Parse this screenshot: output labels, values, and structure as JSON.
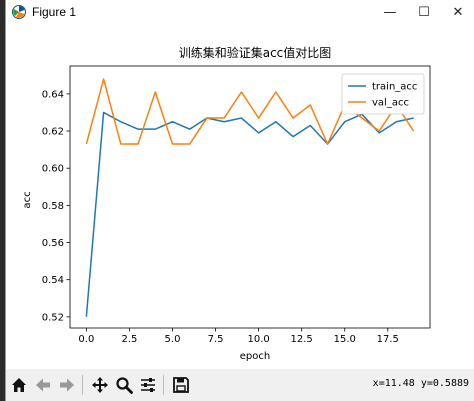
{
  "window": {
    "title": "Figure 1",
    "minimize": "—",
    "maximize": "☐",
    "close": "✕"
  },
  "toolbar": {
    "items": [
      "home-icon",
      "back-icon",
      "forward-icon",
      "pan-icon",
      "zoom-icon",
      "configure-subplots-icon",
      "save-icon"
    ],
    "coords": "x=11.48 y=0.5889"
  },
  "colors": {
    "train": "#1f77b4",
    "val": "#ff7f0e"
  },
  "chart_data": {
    "type": "line",
    "title": "训练集和验证集acc值对比图",
    "xlabel": "epoch",
    "ylabel": "acc",
    "xlim": [
      -0.95,
      19.95
    ],
    "ylim": [
      0.514,
      0.655
    ],
    "xticks": [
      0.0,
      2.5,
      5.0,
      7.5,
      10.0,
      12.5,
      15.0,
      17.5
    ],
    "xtick_labels": [
      "0.0",
      "2.5",
      "5.0",
      "7.5",
      "10.0",
      "12.5",
      "15.0",
      "17.5"
    ],
    "yticks": [
      0.52,
      0.54,
      0.56,
      0.58,
      0.6,
      0.62,
      0.64
    ],
    "ytick_labels": [
      "0.52",
      "0.54",
      "0.56",
      "0.58",
      "0.60",
      "0.62",
      "0.64"
    ],
    "legend_position": "top-right",
    "x": [
      0,
      1,
      2,
      3,
      4,
      5,
      6,
      7,
      8,
      9,
      10,
      11,
      12,
      13,
      14,
      15,
      16,
      17,
      18,
      19
    ],
    "series": [
      {
        "name": "train_acc",
        "values": [
          0.52,
          0.63,
          0.625,
          0.621,
          0.621,
          0.625,
          0.621,
          0.627,
          0.625,
          0.627,
          0.619,
          0.625,
          0.617,
          0.623,
          0.613,
          0.625,
          0.629,
          0.619,
          0.625,
          0.627
        ]
      },
      {
        "name": "val_acc",
        "values": [
          0.613,
          0.648,
          0.613,
          0.613,
          0.641,
          0.613,
          0.613,
          0.627,
          0.627,
          0.641,
          0.627,
          0.641,
          0.627,
          0.634,
          0.613,
          0.634,
          0.627,
          0.62,
          0.634,
          0.62
        ]
      }
    ]
  }
}
